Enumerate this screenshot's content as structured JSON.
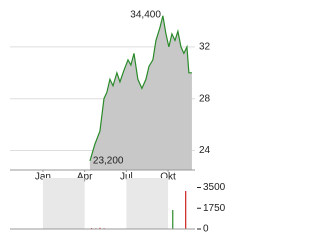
{
  "chart_data": [
    {
      "type": "area",
      "color": "#2a8a2a",
      "fill": "#c8c8c8",
      "grid": true,
      "x": [
        3.38,
        3.74,
        4.1,
        4.39,
        4.6,
        4.82,
        5.04,
        5.32,
        5.54,
        5.83,
        6.12,
        6.33,
        6.55,
        6.83,
        7.12,
        7.41,
        7.63,
        7.91,
        8.13,
        8.42,
        8.63,
        8.85,
        9.06,
        9.28,
        9.5,
        9.71,
        9.93,
        10.14,
        10.36,
        10.5,
        10.72
      ],
      "values": [
        23.2,
        24.5,
        25.5,
        28,
        28.5,
        29.5,
        29,
        30,
        29.3,
        30.2,
        31,
        30.6,
        31.5,
        29.5,
        28.8,
        29.5,
        30.5,
        31,
        32.5,
        33.5,
        34.4,
        33,
        32,
        33,
        32.5,
        33.2,
        32,
        31.5,
        32,
        30,
        30
      ],
      "xlim": [
        -2.37,
        10.94
      ],
      "xticks": [
        {
          "value": 0,
          "label": "Jan"
        },
        {
          "value": 3,
          "label": "Apr"
        },
        {
          "value": 6,
          "label": "Jul"
        },
        {
          "value": 9,
          "label": "Okt"
        }
      ],
      "ylim": [
        22.5,
        35
      ],
      "yticks": [
        24,
        28,
        32
      ],
      "annotations": [
        {
          "x": 8.63,
          "value": 34.4,
          "label": "34,400"
        },
        {
          "x": 3.38,
          "value": 23.2,
          "label": "23,200"
        }
      ]
    },
    {
      "type": "bar",
      "x": [
        3.5,
        3.8,
        4.1,
        4.4,
        9.34,
        10.27
      ],
      "values": [
        80,
        60,
        100,
        70,
        1600,
        3200
      ],
      "colors": [
        "#cc2222",
        "#cc2222",
        "#cc2222",
        "#cc2222",
        "#2a8a2a",
        "#cc2222"
      ],
      "xlim": [
        -2.37,
        10.94
      ],
      "ylim": [
        0,
        4300
      ],
      "yticks": [
        0,
        1750,
        3500
      ]
    }
  ]
}
